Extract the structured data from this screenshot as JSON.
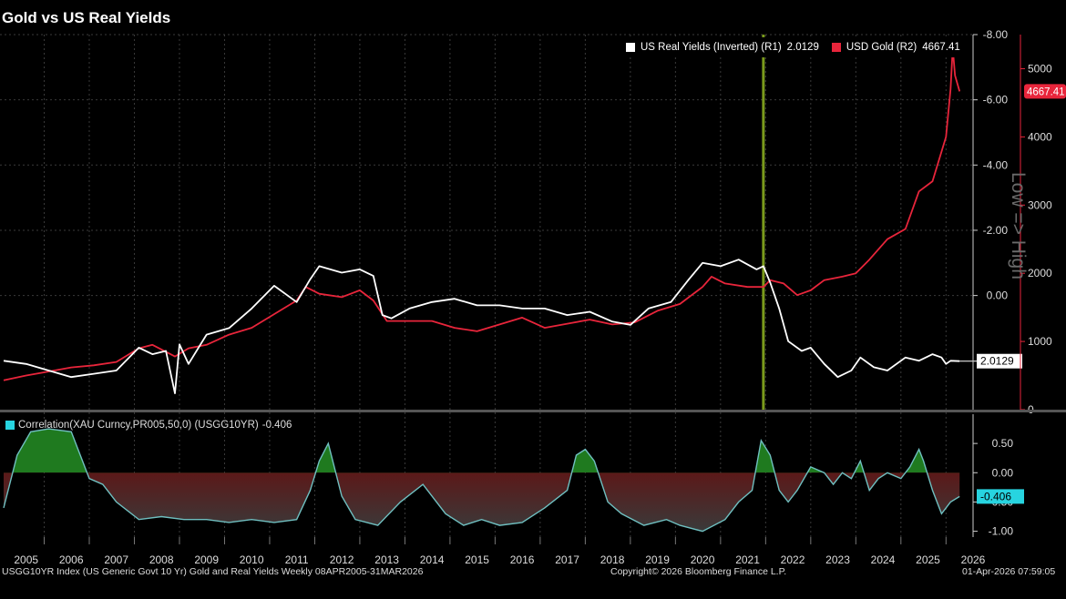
{
  "title": "Gold vs US Real Yields",
  "footer": {
    "left": "USGG10YR Index (US Generic Govt 10 Yr) Gold and Real Yields Weekly 08APR2005-31MAR2026",
    "center": "Copyright© 2026 Bloomberg Finance L.P.",
    "right": "01-Apr-2026 07:59:05"
  },
  "colors": {
    "background": "#000000",
    "grid": "#3a3a3a",
    "yields": "#ffffff",
    "gold": "#e8253b",
    "vline": "#7a9a1c",
    "corr_pos": "#1f7a1f",
    "corr_neg": "#8b1111",
    "corr_line": "#6fbfc0",
    "corr_legend": "#27d4e0"
  },
  "chart_data": {
    "type": "line",
    "title": "Gold vs US Real Yields",
    "right_axis_label": "Low => High",
    "x_range": [
      2004.92,
      2026.5
    ],
    "x_ticks": [
      "2005",
      "2006",
      "2007",
      "2008",
      "2009",
      "2010",
      "2011",
      "2012",
      "2013",
      "2014",
      "2015",
      "2016",
      "2017",
      "2018",
      "2019",
      "2020",
      "2021",
      "2022",
      "2023",
      "2024",
      "2025",
      "2026"
    ],
    "vertical_marker_year": 2021.85,
    "main_panel": {
      "r1": {
        "label": "R1 (inverted)",
        "ylim": [
          3.5,
          -8.0
        ],
        "ticks": [
          "-8.00",
          "-6.00",
          "-4.00",
          "-2.00",
          "0.00"
        ]
      },
      "r2": {
        "label": "R2",
        "ylim": [
          0,
          5500
        ],
        "ticks": [
          "5000",
          "4000",
          "3000",
          "2000",
          "1000",
          "0"
        ]
      },
      "legend": [
        {
          "name": "US Real Yields (Inverted) (R1)",
          "value": "2.0129"
        },
        {
          "name": "USD Gold (R2)",
          "value": "4667.41"
        }
      ],
      "last_labels": {
        "yields": "2.0129",
        "gold": "4667.41"
      },
      "series": [
        {
          "name": "US Real Yields (Inverted)",
          "axis": "R1",
          "x": [
            2005.0,
            2005.5,
            2006.0,
            2006.5,
            2007.0,
            2007.5,
            2008.0,
            2008.3,
            2008.6,
            2008.8,
            2008.9,
            2009.1,
            2009.5,
            2010.0,
            2010.5,
            2011.0,
            2011.5,
            2011.8,
            2012.0,
            2012.5,
            2012.9,
            2013.2,
            2013.4,
            2013.6,
            2014.0,
            2014.5,
            2015.0,
            2015.5,
            2016.0,
            2016.5,
            2017.0,
            2017.5,
            2018.0,
            2018.5,
            2018.9,
            2019.3,
            2019.8,
            2020.2,
            2020.5,
            2020.9,
            2021.3,
            2021.7,
            2021.85,
            2022.0,
            2022.2,
            2022.4,
            2022.7,
            2022.9,
            2023.2,
            2023.5,
            2023.8,
            2024.0,
            2024.3,
            2024.6,
            2025.0,
            2025.3,
            2025.6,
            2025.8,
            2025.9,
            2026.0,
            2026.2
          ],
          "y": [
            2.0,
            2.1,
            2.3,
            2.5,
            2.4,
            2.3,
            1.6,
            1.8,
            1.7,
            3.0,
            1.5,
            2.1,
            1.2,
            1.0,
            0.4,
            -0.3,
            0.2,
            -0.5,
            -0.9,
            -0.7,
            -0.8,
            -0.6,
            0.6,
            0.7,
            0.4,
            0.2,
            0.1,
            0.3,
            0.3,
            0.4,
            0.4,
            0.6,
            0.5,
            0.8,
            0.9,
            0.4,
            0.2,
            -0.5,
            -1.0,
            -0.9,
            -1.1,
            -0.8,
            -0.9,
            -0.4,
            0.4,
            1.4,
            1.7,
            1.6,
            2.1,
            2.5,
            2.3,
            1.9,
            2.2,
            2.3,
            1.9,
            2.0,
            1.8,
            1.9,
            2.1,
            2.0,
            2.0129
          ]
        },
        {
          "name": "USD Gold",
          "axis": "R2",
          "x": [
            2005.0,
            2005.5,
            2006.0,
            2006.5,
            2007.0,
            2007.5,
            2008.0,
            2008.3,
            2008.8,
            2009.1,
            2009.5,
            2010.0,
            2010.5,
            2011.0,
            2011.5,
            2011.7,
            2012.0,
            2012.5,
            2012.9,
            2013.2,
            2013.5,
            2014.0,
            2014.5,
            2015.0,
            2015.5,
            2016.0,
            2016.5,
            2017.0,
            2017.5,
            2018.0,
            2018.5,
            2019.0,
            2019.5,
            2020.0,
            2020.5,
            2020.7,
            2021.0,
            2021.5,
            2021.85,
            2022.0,
            2022.3,
            2022.6,
            2022.9,
            2023.2,
            2023.6,
            2023.9,
            2024.2,
            2024.6,
            2025.0,
            2025.3,
            2025.6,
            2025.9,
            2026.0,
            2026.05,
            2026.1,
            2026.2
          ],
          "y": [
            430,
            500,
            560,
            620,
            650,
            700,
            900,
            950,
            780,
            900,
            950,
            1100,
            1200,
            1400,
            1600,
            1800,
            1700,
            1650,
            1750,
            1600,
            1300,
            1300,
            1300,
            1200,
            1150,
            1250,
            1350,
            1200,
            1260,
            1320,
            1250,
            1280,
            1450,
            1550,
            1800,
            1950,
            1850,
            1800,
            1800,
            1900,
            1850,
            1680,
            1750,
            1900,
            1950,
            2000,
            2200,
            2500,
            2650,
            3200,
            3350,
            4000,
            4700,
            5300,
            4900,
            4667.41
          ]
        }
      ]
    },
    "correlation_panel": {
      "legend": "Correlation(XAU Curncy,PR005,50,0) (USGG10YR)",
      "value": "-0.406",
      "ylim": [
        -1.1,
        1.0
      ],
      "ticks": [
        "0.50",
        "0.00",
        "-0.50",
        "-1.00"
      ],
      "series": {
        "name": "Correlation",
        "x": [
          2005.0,
          2005.3,
          2005.6,
          2006.0,
          2006.5,
          2006.7,
          2006.9,
          2007.2,
          2007.5,
          2008.0,
          2008.5,
          2009.0,
          2009.5,
          2010.0,
          2010.5,
          2011.0,
          2011.5,
          2011.8,
          2012.0,
          2012.2,
          2012.5,
          2012.8,
          2013.3,
          2013.8,
          2014.3,
          2014.8,
          2015.2,
          2015.6,
          2016.0,
          2016.5,
          2017.0,
          2017.5,
          2017.7,
          2017.9,
          2018.1,
          2018.4,
          2018.7,
          2019.2,
          2019.7,
          2020.0,
          2020.5,
          2021.0,
          2021.3,
          2021.6,
          2021.8,
          2022.0,
          2022.2,
          2022.4,
          2022.6,
          2022.9,
          2023.2,
          2023.4,
          2023.6,
          2023.8,
          2024.0,
          2024.2,
          2024.4,
          2024.6,
          2024.9,
          2025.1,
          2025.3,
          2025.4,
          2025.6,
          2025.8,
          2026.0,
          2026.2
        ],
        "y": [
          -0.6,
          0.3,
          0.7,
          0.75,
          0.7,
          0.3,
          -0.1,
          -0.2,
          -0.5,
          -0.8,
          -0.75,
          -0.8,
          -0.8,
          -0.85,
          -0.8,
          -0.85,
          -0.8,
          -0.3,
          0.2,
          0.5,
          -0.4,
          -0.8,
          -0.9,
          -0.5,
          -0.2,
          -0.7,
          -0.9,
          -0.8,
          -0.9,
          -0.85,
          -0.6,
          -0.3,
          0.3,
          0.4,
          0.2,
          -0.5,
          -0.7,
          -0.9,
          -0.8,
          -0.9,
          -1.0,
          -0.8,
          -0.5,
          -0.3,
          0.55,
          0.3,
          -0.3,
          -0.5,
          -0.3,
          0.1,
          0.0,
          -0.2,
          0.0,
          -0.1,
          0.2,
          -0.3,
          -0.1,
          0.0,
          -0.1,
          0.1,
          0.4,
          0.2,
          -0.3,
          -0.7,
          -0.5,
          -0.406
        ]
      }
    }
  }
}
